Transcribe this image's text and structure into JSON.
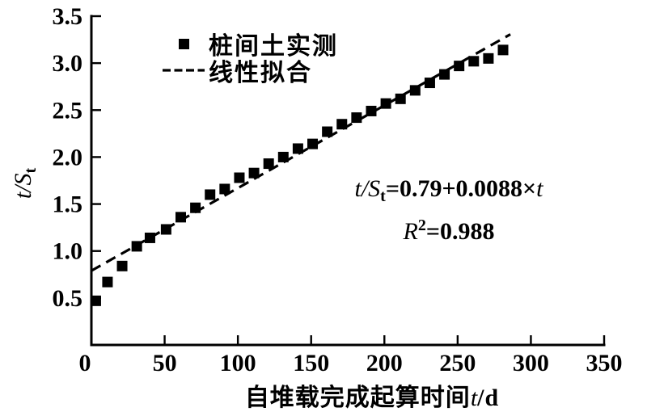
{
  "figure": {
    "background": "#ffffff",
    "ink": "#000000"
  },
  "labels": {
    "y_main": "t/S",
    "y_sub": "t",
    "x_pre": "自堆载完成起算时间",
    "x_var": "t",
    "x_post": "/d"
  },
  "legend": {
    "items": [
      {
        "label": "桩间土实测",
        "marker": "filled-square"
      },
      {
        "label": "线性拟合",
        "marker": "dashed-line"
      }
    ]
  },
  "annotation": {
    "eq_lhs": "t/S",
    "eq_sub": "t",
    "eq_mid": "=0.79+0.0088×",
    "eq_var": "t",
    "r2_sym": "R",
    "r2_sup": "2",
    "r2_rest": "=0.988"
  },
  "chart_data": {
    "type": "scatter",
    "title": "",
    "xlabel": "自堆载完成起算时间 t/d",
    "ylabel": "t/St",
    "xlim": [
      0,
      350
    ],
    "ylim": [
      0,
      3.5
    ],
    "xticks": [
      0,
      50,
      100,
      150,
      200,
      250,
      300,
      350
    ],
    "xtick_labels": [
      "0",
      "50",
      "100",
      "150",
      "200",
      "250",
      "300",
      "350"
    ],
    "yticks": [
      0.5,
      1.0,
      1.5,
      2.0,
      2.5,
      3.0,
      3.5
    ],
    "ytick_labels": [
      "0.5",
      "1.0",
      "1.5",
      "2.0",
      "2.5",
      "3.0",
      "3.5"
    ],
    "grid": false,
    "legend_position": "inside-top-left",
    "series": [
      {
        "name": "桩间土实测",
        "type": "scatter",
        "marker": "square",
        "color": "#000000",
        "points": [
          [
            3,
            0.47
          ],
          [
            11,
            0.67
          ],
          [
            21,
            0.84
          ],
          [
            31,
            1.05
          ],
          [
            40,
            1.14
          ],
          [
            51,
            1.23
          ],
          [
            61,
            1.36
          ],
          [
            71,
            1.46
          ],
          [
            81,
            1.6
          ],
          [
            91,
            1.66
          ],
          [
            101,
            1.78
          ],
          [
            111,
            1.83
          ],
          [
            121,
            1.93
          ],
          [
            131,
            2.0
          ],
          [
            141,
            2.09
          ],
          [
            151,
            2.14
          ],
          [
            161,
            2.27
          ],
          [
            171,
            2.35
          ],
          [
            181,
            2.42
          ],
          [
            191,
            2.49
          ],
          [
            201,
            2.57
          ],
          [
            211,
            2.62
          ],
          [
            221,
            2.71
          ],
          [
            231,
            2.79
          ],
          [
            241,
            2.88
          ],
          [
            251,
            2.97
          ],
          [
            261,
            3.02
          ],
          [
            271,
            3.05
          ],
          [
            281,
            3.14
          ]
        ]
      },
      {
        "name": "线性拟合",
        "type": "line",
        "style": "dashed",
        "color": "#000000",
        "equation": {
          "intercept": 0.79,
          "slope": 0.0088
        },
        "x_range": [
          0,
          286
        ],
        "r_squared": 0.988
      }
    ],
    "annotation_text": [
      "t/St=0.79+0.0088×t",
      "R²=0.988"
    ]
  }
}
